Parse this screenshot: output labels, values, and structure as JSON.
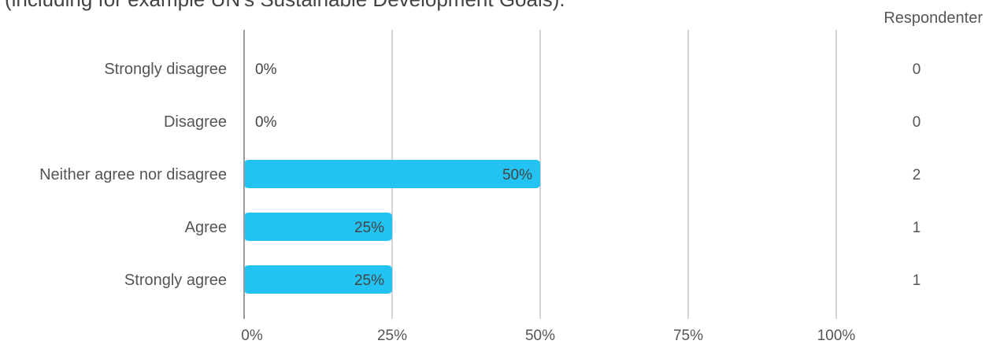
{
  "question_text": "(including for example UN's Sustainable Development Goals).",
  "respondents_header": "Respondenter",
  "colors": {
    "bar": "#22c3f3",
    "gridline": "#a6a6a6",
    "axis": "#9a9a9a"
  },
  "chart_data": {
    "type": "bar",
    "orientation": "horizontal",
    "title": "",
    "xlabel": "",
    "ylabel": "",
    "xlim": [
      0,
      100
    ],
    "x_ticks": [
      "0%",
      "25%",
      "50%",
      "75%",
      "100%"
    ],
    "x_tick_values": [
      0,
      25,
      50,
      75,
      100
    ],
    "grid": true,
    "categories": [
      "Strongly disagree",
      "Disagree",
      "Neither agree nor disagree",
      "Agree",
      "Strongly agree"
    ],
    "values": [
      0,
      0,
      50,
      25,
      25
    ],
    "value_labels": [
      "0%",
      "0%",
      "50%",
      "25%",
      "25%"
    ],
    "respondents": [
      "0",
      "0",
      "2",
      "1",
      "1"
    ]
  }
}
